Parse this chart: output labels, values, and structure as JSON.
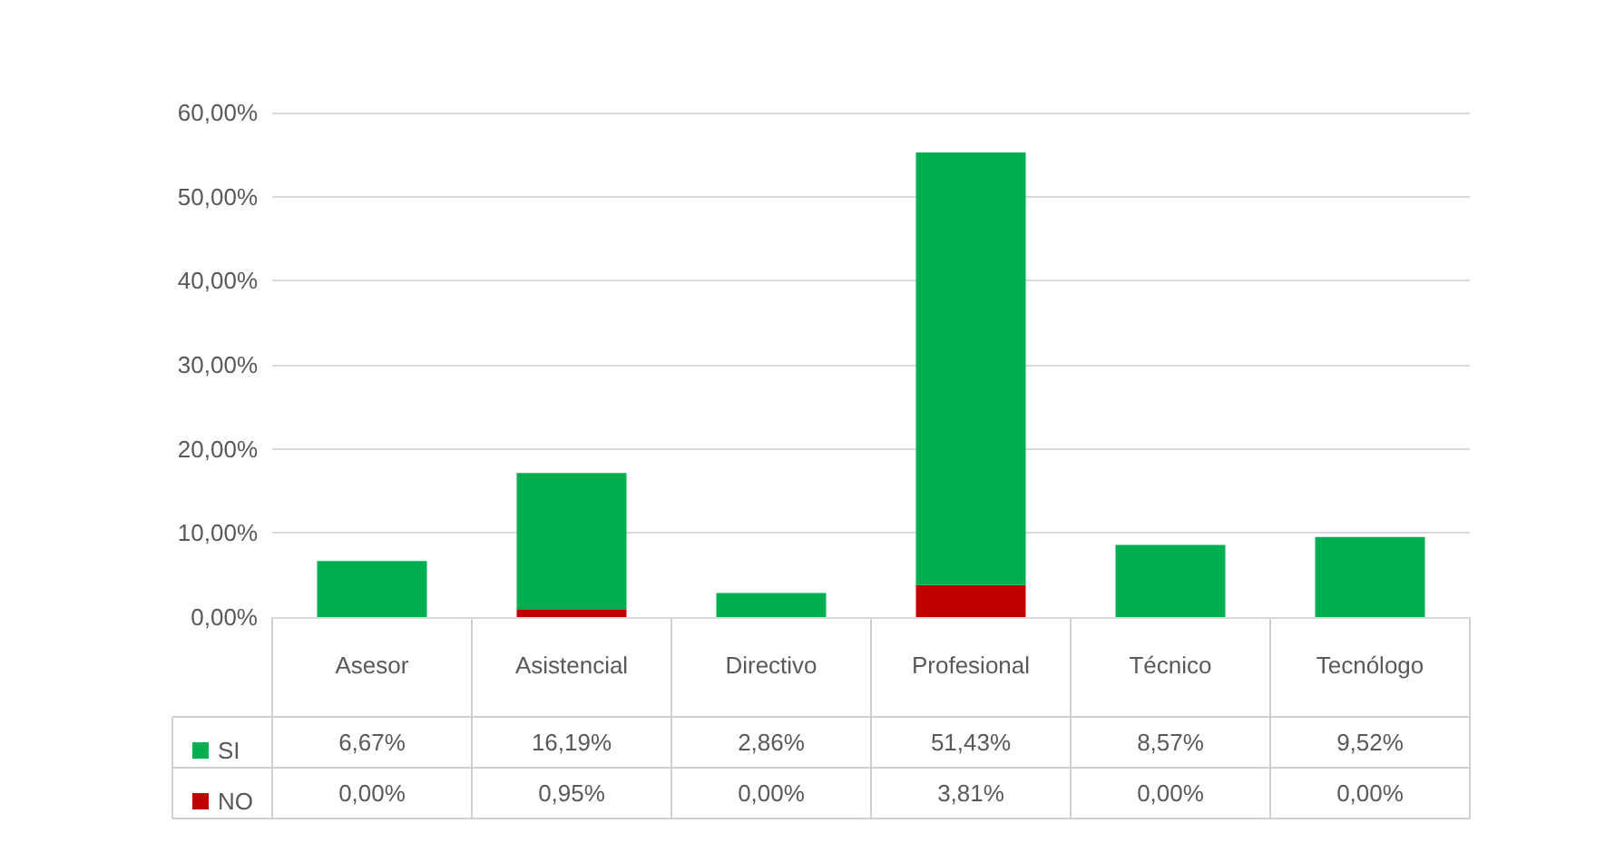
{
  "chart_data": {
    "type": "bar",
    "stacked": true,
    "categories": [
      "Asesor",
      "Asistencial",
      "Directivo",
      "Profesional",
      "Técnico",
      "Tecnólogo"
    ],
    "series": [
      {
        "name": "NO",
        "color": "#c00000",
        "values": [
          0,
          0.95,
          0,
          3.81,
          0,
          0
        ],
        "value_labels": [
          "0,00%",
          "0,95%",
          "0,00%",
          "3,81%",
          "0,00%",
          "0,00%"
        ]
      },
      {
        "name": "SI",
        "color": "#00b050",
        "values": [
          6.67,
          16.19,
          2.86,
          51.43,
          8.57,
          9.52
        ],
        "value_labels": [
          "6,67%",
          "16,19%",
          "2,86%",
          "51,43%",
          "8,57%",
          "9,52%"
        ]
      }
    ],
    "ylim": [
      0,
      60
    ],
    "yticks": [
      {
        "value": 0,
        "label": "0,00%"
      },
      {
        "value": 10,
        "label": "10,00%"
      },
      {
        "value": 20,
        "label": "20,00%"
      },
      {
        "value": 30,
        "label": "30,00%"
      },
      {
        "value": 40,
        "label": "40,00%"
      },
      {
        "value": 50,
        "label": "50,00%"
      },
      {
        "value": 60,
        "label": "60,00%"
      }
    ],
    "grid": "y",
    "legend": "bottom left"
  }
}
